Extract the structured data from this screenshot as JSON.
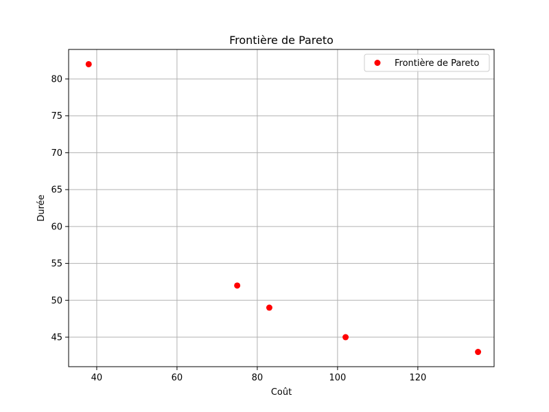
{
  "chart_data": {
    "type": "scatter",
    "title": "Frontière de Pareto",
    "xlabel": "Coût",
    "ylabel": "Durée",
    "xlim": [
      33,
      139
    ],
    "ylim": [
      41,
      84
    ],
    "xticks": [
      40,
      60,
      80,
      100,
      120
    ],
    "yticks": [
      45,
      50,
      55,
      60,
      65,
      70,
      75,
      80
    ],
    "grid": true,
    "legend_position": "top-right",
    "series": [
      {
        "name": "Frontière de Pareto",
        "color": "#ff0000",
        "points": [
          {
            "x": 38,
            "y": 82
          },
          {
            "x": 75,
            "y": 52
          },
          {
            "x": 83,
            "y": 49
          },
          {
            "x": 102,
            "y": 45
          },
          {
            "x": 135,
            "y": 43
          }
        ]
      }
    ]
  }
}
